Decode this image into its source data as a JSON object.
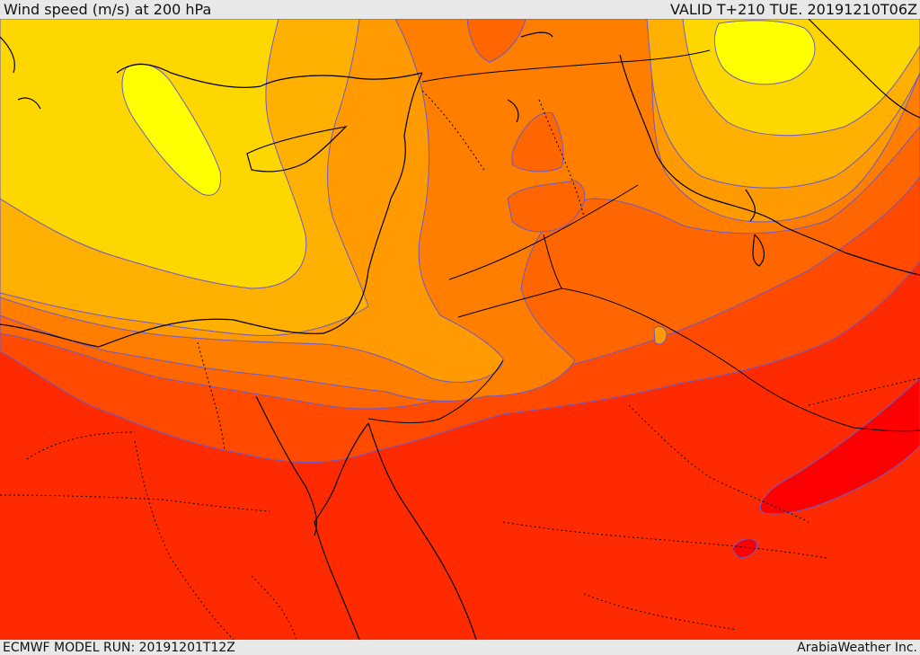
{
  "header": {
    "title": "Wind speed (m/s) at 200 hPa",
    "valid_time": "VALID T+210 TUE. 20191210T06Z"
  },
  "footer": {
    "model_run": "ECMWF MODEL RUN: 20191201T12Z",
    "credit": "ArabiaWeather Inc."
  },
  "map": {
    "region": "Eastern Mediterranean and Middle East",
    "field": "wind speed at 200 hPa",
    "palette": [
      "#ffff00",
      "#ffd700",
      "#ffb000",
      "#ff9a00",
      "#ff7e00",
      "#ff6600",
      "#ff4a00",
      "#ff2a00",
      "#ff0000"
    ],
    "contour_color": "#6a5acd",
    "coastline_color": "#000000",
    "boundary_style": "dotted"
  }
}
